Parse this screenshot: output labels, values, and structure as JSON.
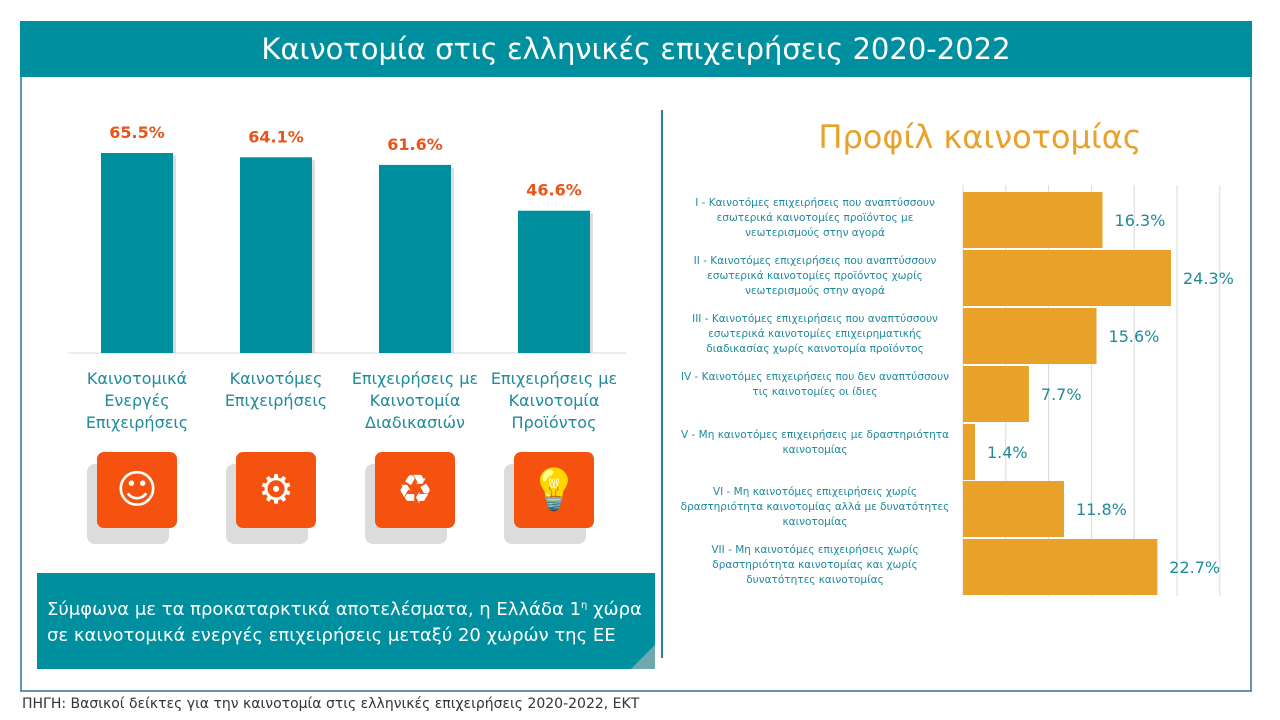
{
  "header": {
    "title": "Καινοτομία στις ελληνικές επιχειρήσεις 2020-2022"
  },
  "colors": {
    "teal": "#008f9f",
    "orange_label": "#e8541a",
    "gold": "#e8a22a",
    "icon_bg": "#f4520e"
  },
  "chart_data": [
    {
      "type": "bar",
      "categories": [
        "Καινοτομικά Ενεργές Επιχειρήσεις",
        "Καινοτόμες Επιχειρήσεις",
        "Επιχειρήσεις με Καινοτομία Διαδικασιών",
        "Επιχειρήσεις με Καινοτομία Προϊόντος"
      ],
      "values": [
        65.5,
        64.1,
        61.6,
        46.6
      ],
      "labels": [
        "65.5%",
        "64.1%",
        "61.6%",
        "46.6%"
      ],
      "ylim": [
        0,
        70
      ],
      "grid": false,
      "icons": [
        "people-lightbulb-icon",
        "gear-search-icon",
        "process-cycle-icon",
        "lightbulb-box-icon"
      ]
    },
    {
      "type": "bar",
      "orientation": "horizontal",
      "title": "Προφίλ καινοτομίας",
      "categories": [
        "I - Καινοτόμες επιχειρήσεις που αναπτύσσουν εσωτερικά καινοτομίες προϊόντος με νεωτερισμούς στην αγορά",
        "II - Καινοτόμες επιχειρήσεις που αναπτύσσουν εσωτερικά καινοτομίες προϊόντος χωρίς νεωτερισμούς στην αγορά",
        "III - Καινοτόμες επιχειρήσεις που αναπτύσσουν εσωτερικά καινοτομίες επιχειρηματικής διαδικασίας χωρίς καινοτομία προϊόντος",
        "IV - Καινοτόμες επιχειρήσεις που δεν αναπτύσσουν τις καινοτομίες οι ίδιες",
        "V - Μη καινοτόμες επιχειρήσεις με δραστηριότητα καινοτομίας",
        "VI - Μη καινοτόμες επιχειρήσεις χωρίς δραστηριότητα καινοτομίας αλλά με δυνατότητες καινοτομίας",
        "VII - Μη καινοτόμες επιχειρήσεις χωρίς δραστηριότητα καινοτομίας και χωρίς δυνατότητες καινοτομίας"
      ],
      "values": [
        16.3,
        24.3,
        15.6,
        7.7,
        1.4,
        11.8,
        22.7
      ],
      "labels": [
        "16.3%",
        "24.3%",
        "15.6%",
        "7.7%",
        "1.4%",
        "11.8%",
        "22.7%"
      ],
      "xlim": [
        0,
        30
      ],
      "grid": true
    }
  ],
  "note": {
    "text_a": "Σύμφωνα με τα προκαταρκτικά αποτελέσματα, η Ελλάδα 1",
    "sup": "η",
    "text_b": " χώρα σε καινοτομικά ενεργές επιχειρήσεις μεταξύ 20 χωρών της ΕΕ"
  },
  "source": "ΠΗΓΗ: Βασικοί δείκτες για την καινοτομία στις ελληνικές επιχειρήσεις 2020-2022, ΕΚΤ"
}
